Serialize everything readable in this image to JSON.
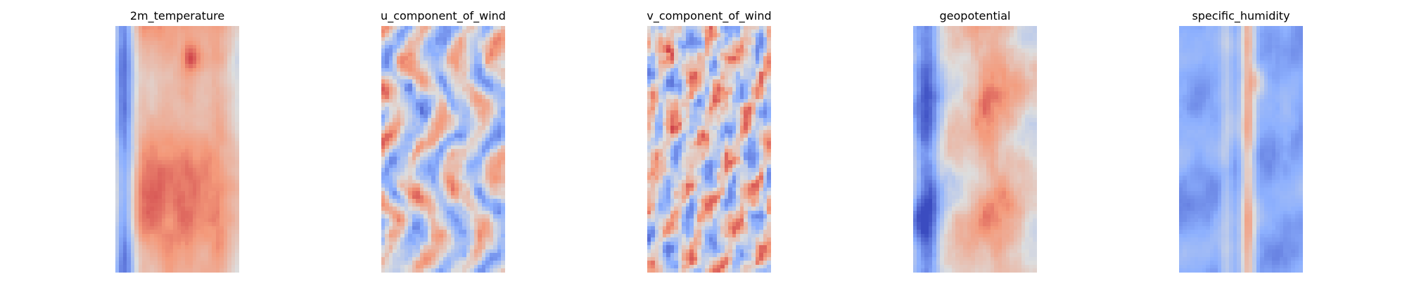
{
  "chart_data": [
    {
      "type": "heatmap",
      "title": "2m_temperature",
      "xlabel": "",
      "ylabel": "",
      "axes": "off",
      "grid": false,
      "colormap": "coolwarm",
      "legend": "none",
      "field_summary": {
        "pattern": "cool band along left edge, broad warm band across center and right",
        "warm_max_location": "upper center",
        "cool_band": "left edge"
      }
    },
    {
      "type": "heatmap",
      "title": "u_component_of_wind",
      "xlabel": "",
      "ylabel": "",
      "axes": "off",
      "grid": false,
      "colormap": "coolwarm",
      "legend": "none",
      "field_summary": {
        "pattern": "alternating blue and red streaks, predominantly neutral to cool",
        "warm_max_location": "upper left",
        "cool_band": "scattered"
      }
    },
    {
      "type": "heatmap",
      "title": "v_component_of_wind",
      "xlabel": "",
      "ylabel": "",
      "axes": "off",
      "grid": false,
      "colormap": "coolwarm",
      "legend": "none",
      "field_summary": {
        "pattern": "fine wavy alternating red and blue cells",
        "warm_max_location": "left side",
        "cool_band": "scattered"
      }
    },
    {
      "type": "heatmap",
      "title": "geopotential",
      "xlabel": "",
      "ylabel": "",
      "axes": "off",
      "grid": false,
      "colormap": "coolwarm",
      "legend": "none",
      "field_summary": {
        "pattern": "cool left edge, warm center with patchy lighter spots",
        "warm_max_location": "center",
        "cool_band": "left edge"
      }
    },
    {
      "type": "heatmap",
      "title": "specific_humidity",
      "xlabel": "",
      "ylabel": "",
      "axes": "off",
      "grid": false,
      "colormap": "coolwarm",
      "legend": "none",
      "field_summary": {
        "pattern": "mostly blue field with narrow warm vertical stripe near center",
        "warm_max_location": "center, upper part",
        "cool_band": "left and right sides"
      }
    }
  ],
  "colors": {
    "background": "#ffffff",
    "title_text": "#000000"
  }
}
